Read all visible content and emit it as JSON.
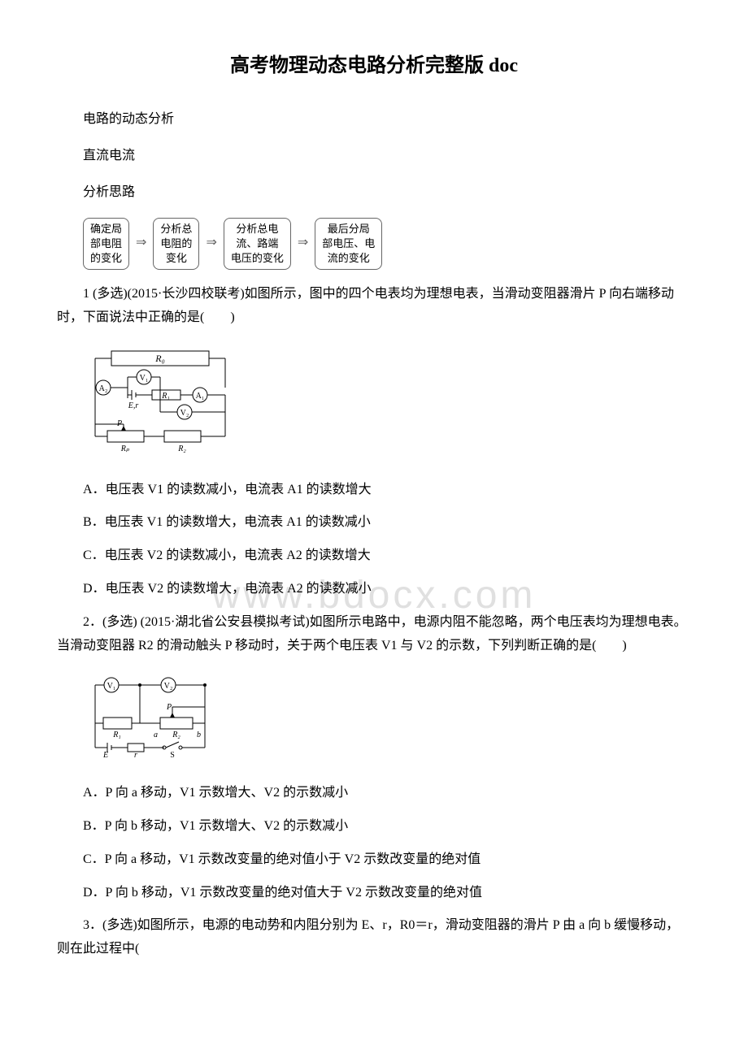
{
  "title": "高考物理动态电路分析完整版 doc",
  "intro": {
    "line1": "电路的动态分析",
    "line2": "直流电流",
    "line3": "分析思路"
  },
  "flowchart": {
    "boxes": [
      "确定局\n部电阻\n的变化",
      "分析总\n电阻的\n变化",
      "分析总电\n流、路端\n电压的变化",
      "最后分局\n部电压、电\n流的变化"
    ],
    "arrow": "⇒"
  },
  "watermark": "www.bdocx.com",
  "questions": [
    {
      "stem": "1 (多选)(2015·长沙四校联考)如图所示，图中的四个电表均为理想电表，当滑动变阻器滑片 P 向右端移动时，下面说法中正确的是(　　)",
      "circuit": {
        "type": "circuit-1",
        "labels": {
          "R0": "R₀",
          "A2": "A₂",
          "V1": "V₁",
          "E": "E, r",
          "R1": "R₁",
          "A1": "A₁",
          "V2": "V₂",
          "P": "P",
          "RP": "Rₚ",
          "R2": "R₂"
        }
      },
      "options": [
        "A．电压表 V1 的读数减小，电流表 A1 的读数增大",
        "B．电压表 V1 的读数增大，电流表 A1 的读数减小",
        "C．电压表 V2 的读数减小，电流表 A2 的读数增大",
        "D．电压表 V2 的读数增大，电流表 A2 的读数减小"
      ]
    },
    {
      "stem": "2．(多选) (2015·湖北省公安县模拟考试)如图所示电路中，电源内阻不能忽略，两个电压表均为理想电表。当滑动变阻器 R2 的滑动触头 P 移动时，关于两个电压表 V1 与 V2 的示数，下列判断正确的是(　　)",
      "circuit": {
        "type": "circuit-2",
        "labels": {
          "V1": "V₁",
          "V2": "V₂",
          "P": "P",
          "R1": "R₁",
          "a": "a",
          "R2": "R₂",
          "b": "b",
          "E": "E",
          "r": "r",
          "S": "S"
        }
      },
      "options": [
        "A．P 向 a 移动，V1 示数增大、V2 的示数减小",
        "B．P 向 b 移动，V1 示数增大、V2 的示数减小",
        "C．P 向 a 移动，V1 示数改变量的绝对值小于 V2 示数改变量的绝对值",
        "D．P 向 b 移动，V1 示数改变量的绝对值大于 V2 示数改变量的绝对值"
      ]
    },
    {
      "stem": "3．(多选)如图所示，电源的电动势和内阻分别为 E、r，R0＝r，滑动变阻器的滑片 P 由 a 向 b 缓慢移动，则在此过程中("
    }
  ]
}
